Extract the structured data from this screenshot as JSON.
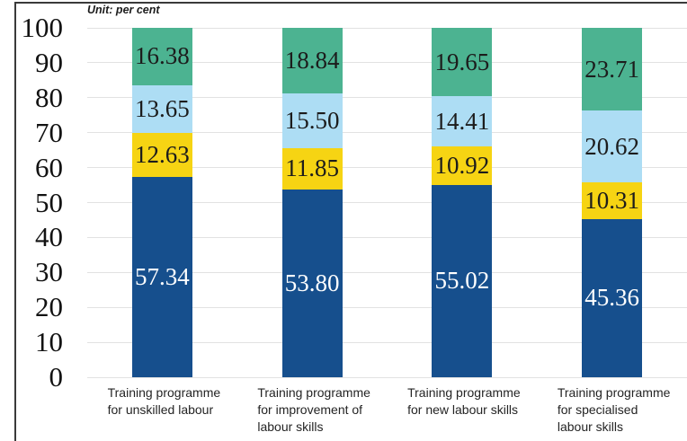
{
  "unit_label": "Unit: per cent",
  "colors": {
    "dark_blue": "#164F8D",
    "yellow": "#F6D413",
    "light_blue": "#ADDDF4",
    "teal": "#4CB391",
    "gridline": "#E2E2E2",
    "frame_border": "#3A3A3A",
    "axis_text": "#121212",
    "category_text": "#242424"
  },
  "chart_data": {
    "type": "bar",
    "stacked": true,
    "unit_label": "Unit: per cent",
    "legend": "none",
    "grid": true,
    "ylim": [
      0,
      100
    ],
    "y_ticks": [
      0,
      10,
      20,
      30,
      40,
      50,
      60,
      70,
      80,
      90,
      100
    ],
    "value_decimals": 2,
    "categories": [
      {
        "lines": [
          "Training programme",
          "for unskilled labour"
        ]
      },
      {
        "lines": [
          "Training programme",
          "for improvement of",
          "labour skills"
        ]
      },
      {
        "lines": [
          "Training programme",
          "for new labour skills"
        ]
      },
      {
        "lines": [
          "Training programme",
          "for specialised",
          "labour skills"
        ]
      }
    ],
    "series": [
      {
        "name": "bottom-share",
        "color": "#164F8D",
        "text_color": "#FFFFFF",
        "values": [
          57.34,
          53.8,
          55.02,
          45.36
        ]
      },
      {
        "name": "second-share",
        "color": "#F6D413",
        "text_color": "#1C1C1C",
        "values": [
          12.63,
          11.85,
          10.92,
          10.31
        ]
      },
      {
        "name": "third-share",
        "color": "#ADDDF4",
        "text_color": "#1C1C1C",
        "values": [
          13.65,
          15.5,
          14.41,
          20.62
        ]
      },
      {
        "name": "top-share",
        "color": "#4CB391",
        "text_color": "#1C1C1C",
        "values": [
          16.38,
          18.84,
          19.65,
          23.71
        ]
      }
    ]
  }
}
